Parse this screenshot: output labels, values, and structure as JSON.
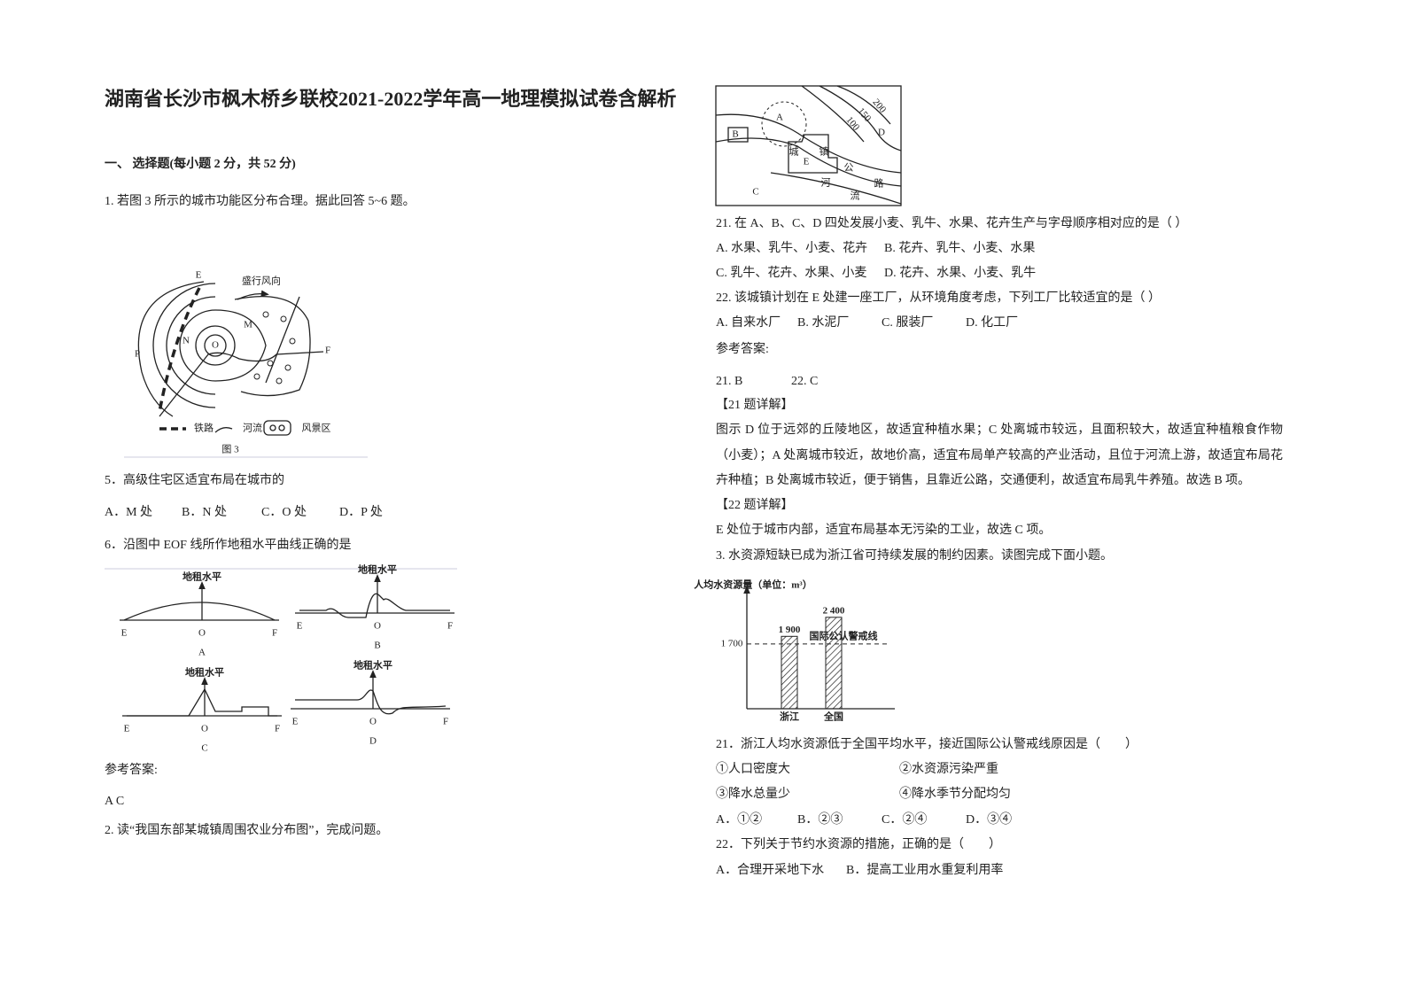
{
  "header": {
    "title": "湖南省长沙市枫木桥乡联校2021-2022学年高一地理模拟试卷含解析"
  },
  "left": {
    "section": "一、 选择题(每小题 2 分，共 52 分)",
    "q1": {
      "stem": "1. 若图 3 所示的城市功能区分布合理。据此回答 5~6 题。",
      "figure3": {
        "wind": "盛行风向",
        "labels": [
          "E",
          "N",
          "M",
          "O",
          "P",
          "F"
        ],
        "legend": [
          "铁路",
          "河流",
          "风景区"
        ],
        "caption": "图 3"
      }
    },
    "q5": {
      "stem": "5．高级住宅区适宜布局在城市的",
      "options": [
        "A．M 处",
        "B．N 处",
        "C．O 处",
        "D．P 处"
      ]
    },
    "q6": {
      "stem": "6．沿图中 EOF 线所作地租水平曲线正确的是",
      "graphs": [
        {
          "title": "地租水平",
          "axis": [
            "E",
            "O",
            "F"
          ],
          "label": "A"
        },
        {
          "title": "地租水平",
          "axis": [
            "E",
            "O",
            "F"
          ],
          "label": "B"
        },
        {
          "title": "地租水平",
          "axis": [
            "E",
            "O",
            "F"
          ],
          "label": "C"
        },
        {
          "title": "地租水平",
          "axis": [
            "E",
            "O",
            "F"
          ],
          "label": "D"
        }
      ]
    },
    "answer": {
      "heading": "参考答案:",
      "text": "A  C"
    },
    "q2": "2. 读“我国东部某城镇周围农业分布图”，完成问题。"
  },
  "right": {
    "map": {
      "labels": [
        "A",
        "B",
        "C",
        "D",
        "E",
        "城",
        "镇",
        "河",
        "流",
        "公",
        "路"
      ],
      "contours": [
        "200",
        "150",
        "100"
      ]
    },
    "q21": {
      "stem": "21.  在 A、B、C、D 四处发展小麦、乳牛、水果、花卉生产与字母顺序相对应的是（ ）",
      "options": [
        "A.  水果、乳牛、小麦、花卉",
        "B.  花卉、乳牛、小麦、水果",
        "C.  乳牛、花卉、水果、小麦",
        "D.  花卉、水果、小麦、乳牛"
      ]
    },
    "q22": {
      "stem": "22.  该城镇计划在 E 处建一座工厂，从环境角度考虑，下列工厂比较适宜的是（ ）",
      "options": [
        "A.  自来水厂",
        "B.  水泥厂",
        "C.  服装厂",
        "D.  化工厂"
      ]
    },
    "answer": {
      "heading": "参考答案:",
      "a21": "21.  B",
      "a22": "22.  C",
      "exp21_heading": "【21 题详解】",
      "exp21": "图示 D 位于远郊的丘陵地区，故适宜种植水果；C 处离城市较远，且面积较大，故适宜种植粮食作物（小麦）；A 处离城市较近，故地价高，适宜布局单产较高的产业活动，且位于河流上游，故适宜布局花卉种植；B 处离城市较近，便于销售，且靠近公路，交通便利，故适宜布局乳牛养殖。故选 B 项。",
      "exp22_heading": "【22 题详解】",
      "exp22": "E 处位于城市内部，适宜布局基本无污染的工业，故选 C 项。"
    },
    "q3": "3. 水资源短缺已成为浙江省可持续发展的制约因素。读图完成下面小题。",
    "water_chart": {
      "y_label": "人均水资源量（单位：m³）",
      "categories": [
        "浙江",
        "全国"
      ],
      "values": [
        1900,
        2400
      ],
      "value_labels": [
        "1 900",
        "2 400"
      ],
      "warning": {
        "value": 1700,
        "label": "1 700",
        "text": "国际公认警戒线"
      }
    },
    "wq21": {
      "stem": "21．浙江人均水资源低于全国平均水平，接近国际公认警戒线原因是（　　）",
      "items": [
        "①人口密度大",
        "②水资源污染严重",
        "③降水总量少",
        "④降水季节分配均匀"
      ],
      "options": [
        "A．①②",
        "B．②③",
        "C．②④",
        "D．③④"
      ]
    },
    "wq22": {
      "stem": "22．下列关于节约水资源的措施，正确的是（　　）",
      "options": [
        "A．合理开采地下水",
        "B．提高工业用水重复利用率"
      ]
    }
  }
}
